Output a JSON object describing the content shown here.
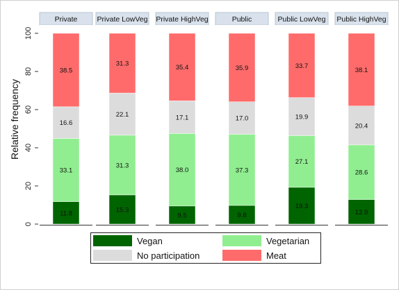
{
  "chart_data": {
    "type": "bar",
    "stacked": true,
    "ylabel": "Relative frequency",
    "ylim": [
      0,
      100
    ],
    "yticks": [
      0,
      20,
      40,
      60,
      80,
      100
    ],
    "legend_position": "bottom",
    "categories": [
      "Private",
      "Private LowVeg",
      "Private HighVeg",
      "Public",
      "Public LowVeg",
      "Public HighVeg"
    ],
    "series": [
      {
        "name": "Vegan",
        "color": "#006400",
        "values": [
          11.8,
          15.3,
          9.5,
          9.8,
          19.3,
          12.9
        ]
      },
      {
        "name": "Vegetarian",
        "color": "#90EE90",
        "values": [
          33.1,
          31.3,
          38.0,
          37.3,
          27.1,
          28.6
        ]
      },
      {
        "name": "No participation",
        "color": "#DCDCDC",
        "values": [
          16.6,
          22.1,
          17.1,
          17.0,
          19.9,
          20.4
        ]
      },
      {
        "name": "Meat",
        "color": "#FF6B6B",
        "values": [
          38.5,
          31.3,
          35.4,
          35.9,
          33.7,
          38.1
        ]
      }
    ],
    "data_labels": [
      [
        "11.8",
        "15.3",
        "9.5",
        "9.8",
        "19.3",
        "12.9"
      ],
      [
        "33.1",
        "31.3",
        "38.0",
        "37.3",
        "27.1",
        "28.6"
      ],
      [
        "16.6",
        "22.1",
        "17.1",
        "17.0",
        "19.9",
        "20.4"
      ],
      [
        "38.5",
        "31.3",
        "35.4",
        "35.9",
        "33.7",
        "38.1"
      ]
    ],
    "legend_order": [
      0,
      1,
      2,
      3
    ],
    "colors": {
      "background": "#ffffff",
      "panel_header": "#D9E2EC",
      "panel_border": "#B7C4D1",
      "frame": "#222222"
    }
  }
}
